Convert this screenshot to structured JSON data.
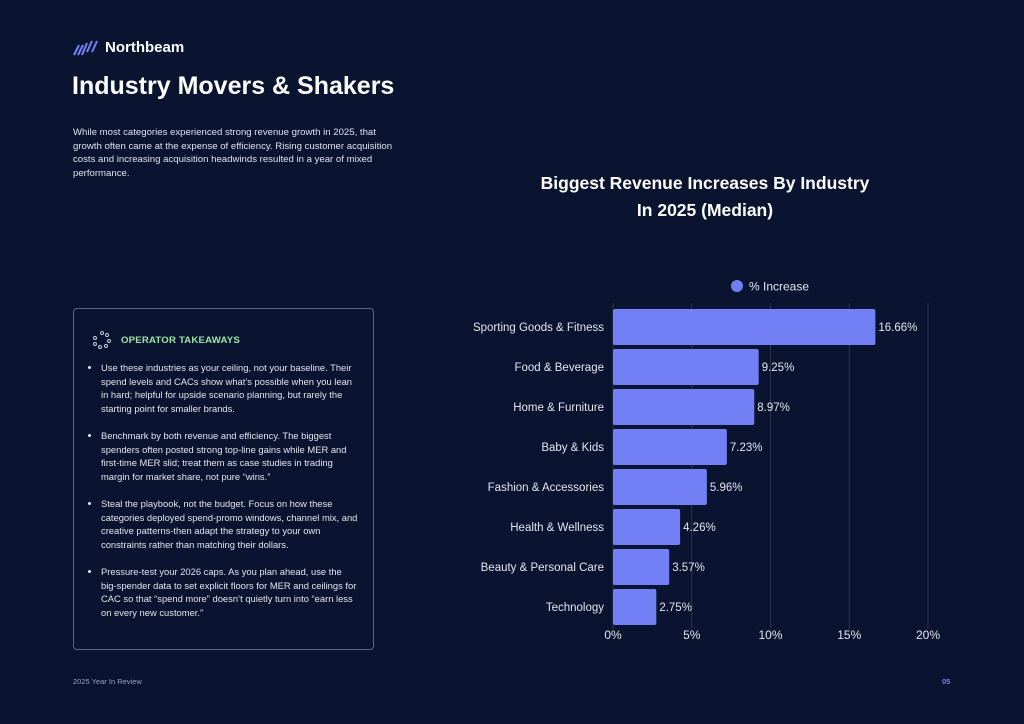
{
  "brand": {
    "name": "Northbeam"
  },
  "header": {
    "title": "Industry Movers & Shakers",
    "intro": "While most categories experienced strong revenue growth in 2025, that growth often came at the expense of efficiency. Rising customer acquisition costs and increasing acquisition headwinds resulted in a year of mixed performance."
  },
  "takeaways": {
    "title": "OPERATOR TAKEAWAYS",
    "items": [
      "Use these industries as your ceiling, not your baseline. Their spend levels and CACs show what’s possible when you lean in hard; helpful for upside scenario planning, but rarely the starting point for smaller brands.",
      "Benchmark by both revenue and efficiency. The biggest spenders often posted strong top-line gains while MER and first-time MER slid; treat them as case studies in trading margin for market share, not pure “wins.”",
      "Steal the playbook, not the budget. Focus on how these categories deployed spend-promo windows, channel mix, and creative patterns-then adapt the strategy to your own constraints rather than matching their dollars.",
      "Pressure-test your 2026 caps. As you plan ahead, use the big-spender data to set explicit floors for MER and ceilings for CAC so that “spend more” doesn’t quietly turn into “earn less on every new customer.”"
    ]
  },
  "chart_data": {
    "type": "bar",
    "orientation": "horizontal",
    "title": "Biggest Revenue Increases By Industry In 2025 (Median)",
    "categories": [
      "Sporting Goods & Fitness",
      "Food & Beverage",
      "Home & Furniture",
      "Baby & Kids",
      "Fashion & Accessories",
      "Health & Wellness",
      "Beauty & Personal Care",
      "Technology"
    ],
    "series": [
      {
        "name": "% Increase",
        "values": [
          16.66,
          9.25,
          8.97,
          7.23,
          5.96,
          4.26,
          3.57,
          2.75
        ],
        "color": "#7380f5"
      }
    ],
    "data_labels": [
      "16.66%",
      "9.25%",
      "8.97%",
      "7.23%",
      "5.96%",
      "4.26%",
      "3.57%",
      "2.75%"
    ],
    "xlim": [
      0,
      20
    ],
    "xticks": [
      0,
      5,
      10,
      15,
      20
    ],
    "xtick_labels": [
      "0%",
      "5%",
      "10%",
      "15%",
      "20%"
    ],
    "grid": true,
    "legend_position": "top"
  },
  "footer": {
    "left": "2025 Year In Review",
    "page": "05"
  },
  "colors": {
    "background": "#0a1430",
    "accent": "#7380f5",
    "takeaway_title": "#9ee5a8"
  }
}
